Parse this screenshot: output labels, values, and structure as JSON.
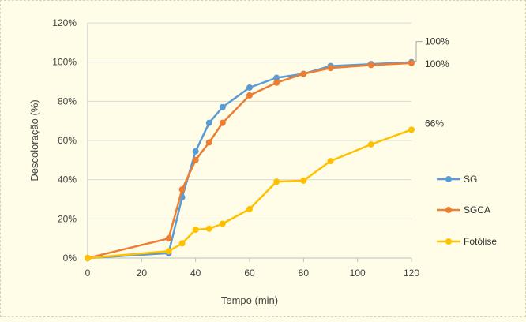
{
  "chart_data": {
    "type": "line",
    "xlabel": "Tempo (min)",
    "ylabel": "Descoloração (%)",
    "xlim": [
      0,
      120
    ],
    "ylim": [
      0,
      120
    ],
    "x_ticks": [
      0,
      20,
      40,
      60,
      80,
      100,
      120
    ],
    "y_ticks": [
      0,
      20,
      40,
      60,
      80,
      100,
      120
    ],
    "x_tick_labels": [
      "0",
      "20",
      "40",
      "60",
      "80",
      "100",
      "120"
    ],
    "y_tick_labels": [
      "0%",
      "20%",
      "40%",
      "60%",
      "80%",
      "100%",
      "120%"
    ],
    "grid": "horizontal",
    "legend_position": "right",
    "series": [
      {
        "name": "SG",
        "color": "#5b9bd5",
        "x": [
          0,
          30,
          35,
          40,
          45,
          50,
          60,
          70,
          80,
          90,
          105,
          120
        ],
        "y": [
          0,
          2.5,
          31,
          54.5,
          69,
          77,
          87,
          92,
          94,
          98,
          99,
          100
        ],
        "end_label": "100%"
      },
      {
        "name": "SGCA",
        "color": "#ed7d31",
        "x": [
          0,
          30,
          35,
          40,
          45,
          50,
          60,
          70,
          80,
          90,
          105,
          120
        ],
        "y": [
          0,
          10,
          35,
          50,
          59,
          69,
          83,
          89.5,
          94,
          97,
          98.5,
          99.5
        ],
        "end_label": "100%"
      },
      {
        "name": "Fotólise",
        "color": "#ffc000",
        "x": [
          0,
          30,
          35,
          40,
          45,
          50,
          60,
          70,
          80,
          90,
          105,
          120
        ],
        "y": [
          0,
          3.5,
          7.5,
          14.5,
          15,
          17.5,
          25,
          39,
          39.5,
          49.5,
          58,
          65.5
        ],
        "end_label": "66%"
      }
    ]
  }
}
